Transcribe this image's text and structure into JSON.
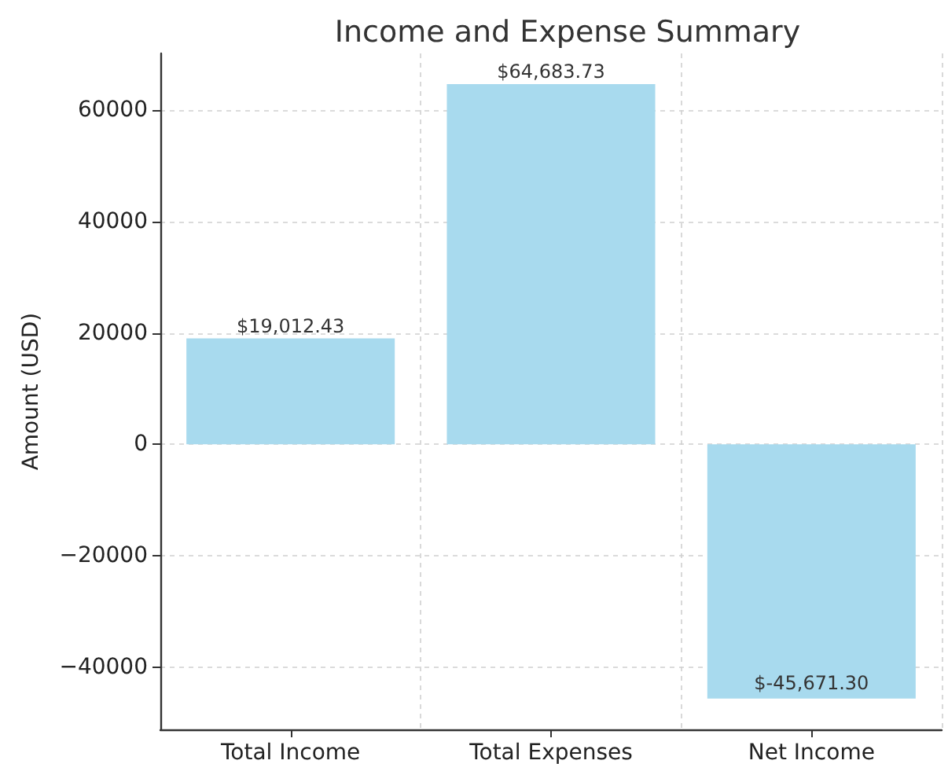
{
  "chart_data": {
    "type": "bar",
    "title": "Income and Expense Summary",
    "ylabel": "Amount (USD)",
    "categories": [
      "Total Income",
      "Total Expenses",
      "Net Income"
    ],
    "values": [
      19012.43,
      64683.73,
      -45671.3
    ],
    "value_labels": [
      "$19,012.43",
      "$64,683.73",
      "$-45,671.30"
    ],
    "color": "#a8daee",
    "ylim": [
      -51200,
      70200
    ],
    "yticks": [
      {
        "value": -40000,
        "label": "−40000"
      },
      {
        "value": -20000,
        "label": "−20000"
      },
      0,
      20000,
      40000,
      60000
    ],
    "grid": true
  }
}
